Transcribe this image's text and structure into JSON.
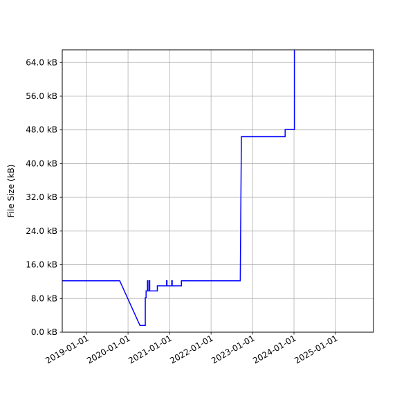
{
  "chart_data": {
    "type": "line",
    "title": "",
    "xlabel": "",
    "ylabel": "File Size (kB)",
    "grid": true,
    "x_axis": {
      "type": "date",
      "range": [
        "2018-06-01",
        "2025-12-01"
      ],
      "tick_values": [
        "2019-01-01",
        "2020-01-01",
        "2021-01-01",
        "2022-01-01",
        "2023-01-01",
        "2024-01-01",
        "2025-01-01"
      ],
      "tick_labels": [
        "2019-01-01",
        "2020-01-01",
        "2021-01-01",
        "2022-01-01",
        "2023-01-01",
        "2024-01-01",
        "2025-01-01"
      ]
    },
    "y_axis": {
      "range": [
        0,
        67
      ],
      "tick_values": [
        0,
        8,
        16,
        24,
        32,
        40,
        48,
        56,
        64
      ],
      "tick_labels": [
        "0.0 kB",
        "8.0 kB",
        "16.0 kB",
        "24.0 kB",
        "32.0 kB",
        "40.0 kB",
        "48.0 kB",
        "56.0 kB",
        "64.0 kB"
      ]
    },
    "series": [
      {
        "color": "#0000ff",
        "points": [
          {
            "x": "2018-06-01",
            "y": 12.2
          },
          {
            "x": "2019-10-20",
            "y": 12.2
          },
          {
            "x": "2020-04-15",
            "y": 1.6
          },
          {
            "x": "2020-06-01",
            "y": 1.6
          },
          {
            "x": "2020-06-01",
            "y": 8.2
          },
          {
            "x": "2020-06-08",
            "y": 8.2
          },
          {
            "x": "2020-06-08",
            "y": 9.8
          },
          {
            "x": "2020-06-20",
            "y": 9.8
          },
          {
            "x": "2020-06-20",
            "y": 12.2
          },
          {
            "x": "2020-06-24",
            "y": 12.2
          },
          {
            "x": "2020-06-24",
            "y": 9.8
          },
          {
            "x": "2020-07-06",
            "y": 9.8
          },
          {
            "x": "2020-07-06",
            "y": 12.2
          },
          {
            "x": "2020-07-10",
            "y": 12.2
          },
          {
            "x": "2020-07-10",
            "y": 9.8
          },
          {
            "x": "2020-09-15",
            "y": 9.8
          },
          {
            "x": "2020-09-15",
            "y": 11.0
          },
          {
            "x": "2020-12-05",
            "y": 11.0
          },
          {
            "x": "2020-12-05",
            "y": 12.2
          },
          {
            "x": "2020-12-09",
            "y": 12.2
          },
          {
            "x": "2020-12-09",
            "y": 11.0
          },
          {
            "x": "2021-01-20",
            "y": 11.0
          },
          {
            "x": "2021-01-20",
            "y": 12.2
          },
          {
            "x": "2021-01-24",
            "y": 12.2
          },
          {
            "x": "2021-01-24",
            "y": 11.0
          },
          {
            "x": "2021-04-15",
            "y": 11.0
          },
          {
            "x": "2021-04-15",
            "y": 12.2
          },
          {
            "x": "2022-09-15",
            "y": 12.2
          },
          {
            "x": "2022-09-25",
            "y": 46.4
          },
          {
            "x": "2023-10-15",
            "y": 46.4
          },
          {
            "x": "2023-10-15",
            "y": 48.1
          },
          {
            "x": "2024-01-05",
            "y": 48.1
          },
          {
            "x": "2024-01-05",
            "y": 67.0
          }
        ]
      }
    ]
  }
}
